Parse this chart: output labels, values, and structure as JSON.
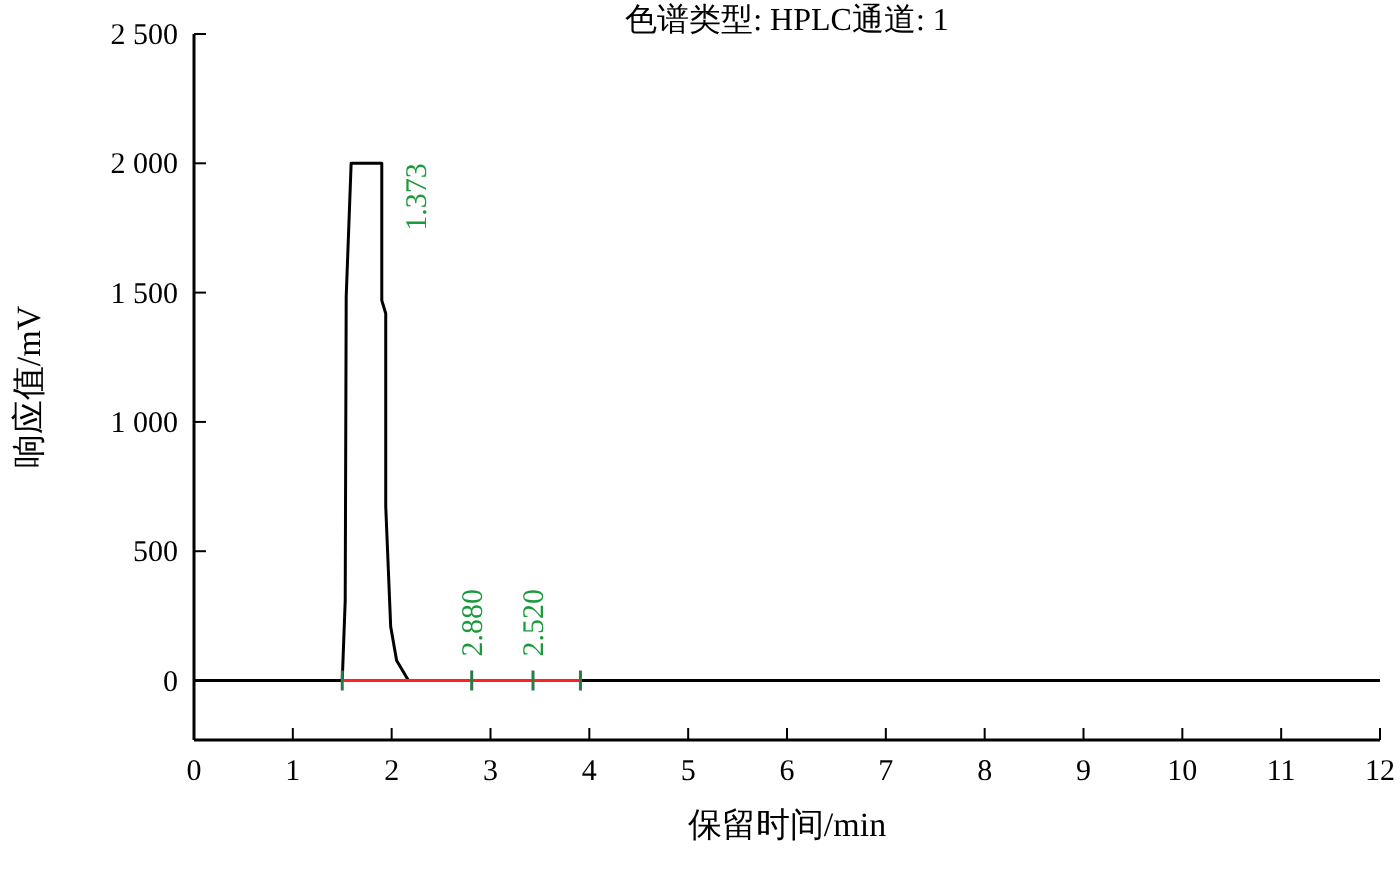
{
  "chart_data": {
    "type": "line",
    "title": "色谱类型: HPLC通道: 1",
    "xlabel": "保留时间/min",
    "ylabel": "响应值/mV",
    "xlim": [
      0,
      12
    ],
    "ylim": [
      -230,
      2500
    ],
    "xticks": [
      0,
      1,
      2,
      3,
      4,
      5,
      6,
      7,
      8,
      9,
      10,
      11,
      12
    ],
    "yticks": [
      0,
      500,
      {
        "value": 1000,
        "label": "1 000"
      },
      {
        "value": 1500,
        "label": "1 500"
      },
      {
        "value": 2000,
        "label": "2 000"
      },
      {
        "value": 2500,
        "label": "2 500"
      }
    ],
    "grid": false,
    "marker": "none",
    "line_style": "solid",
    "series": [
      {
        "color": "#000000",
        "x": [
          0,
          1.5,
          1.53,
          1.54,
          1.59,
          1.9,
          1.9,
          1.94,
          1.94,
          1.99,
          2.05,
          2.17,
          12
        ],
        "values": [
          0,
          0,
          310,
          1484,
          2000,
          2000,
          1470,
          1419,
          673,
          209,
          77,
          0,
          0
        ]
      },
      {
        "color": "#ff2020",
        "x": [
          1.5,
          3.91
        ],
        "values": [
          0,
          0
        ]
      }
    ],
    "annotations": [
      {
        "text": "1.373",
        "x": 1.9,
        "y": 2000
      },
      {
        "text": "2.880",
        "x": 2.81,
        "y": 0
      },
      {
        "text": "2.520",
        "x": 3.43,
        "y": 0
      }
    ]
  }
}
